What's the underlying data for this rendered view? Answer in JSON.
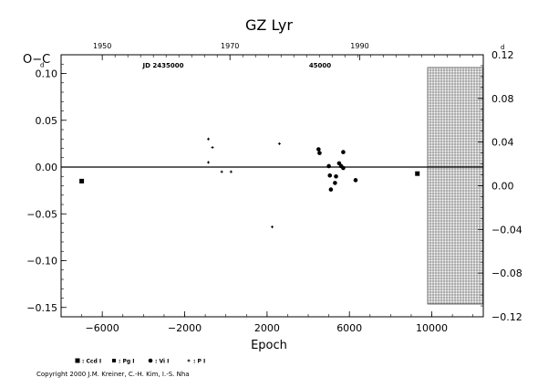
{
  "chart_data": {
    "type": "scatter",
    "title": "GZ Lyr",
    "ylabel": "O−C",
    "xlabel": "Epoch",
    "y_unit_left": "d",
    "y_unit_right": "d",
    "xlim": [
      -8000,
      12500
    ],
    "ylim": [
      -0.16,
      0.12
    ],
    "x_ticks": [
      "−6000",
      "−2000",
      "2000",
      "6000",
      "10000"
    ],
    "y_ticks_left": [
      "0.10",
      "0.05",
      "0.00",
      "−0.05",
      "−0.10",
      "−0.15"
    ],
    "y_ticks_right": [
      "0.12",
      "0.08",
      "0.04",
      "0.00",
      "−0.04",
      "−0.08",
      "−0.12"
    ],
    "top_axis_years": [
      "1950",
      "1970",
      "1990"
    ],
    "jd_labels": [
      "JD 2435000",
      "45000"
    ],
    "grid": false,
    "hatched_region_x": [
      9800,
      12500
    ],
    "zero_line": true,
    "series": [
      {
        "name": ": Ccd I",
        "marker": "square-large",
        "points": [
          [
            -7000,
            -0.015
          ],
          [
            9300,
            -0.007
          ]
        ]
      },
      {
        "name": ": Pg I",
        "marker": "square-small",
        "points": []
      },
      {
        "name": ": Vi I",
        "marker": "circle",
        "points": [
          [
            4500,
            0.019
          ],
          [
            4550,
            0.015
          ],
          [
            5000,
            0.001
          ],
          [
            5050,
            -0.009
          ],
          [
            5100,
            -0.024
          ],
          [
            5300,
            -0.017
          ],
          [
            5350,
            -0.01
          ],
          [
            5500,
            0.004
          ],
          [
            5600,
            0.001
          ],
          [
            5700,
            0.016
          ],
          [
            5700,
            -0.001
          ],
          [
            6300,
            -0.014
          ]
        ]
      },
      {
        "name": ": P I",
        "marker": "plus",
        "points": [
          [
            -850,
            0.03
          ],
          [
            -650,
            0.021
          ],
          [
            -850,
            0.005
          ],
          [
            -200,
            -0.005
          ],
          [
            250,
            -0.005
          ],
          [
            2250,
            -0.064
          ],
          [
            2600,
            0.025
          ]
        ]
      }
    ]
  },
  "copyright": "Copyright 2000 J.M. Kreiner, C.-H. Kim, I.-S. Nha"
}
